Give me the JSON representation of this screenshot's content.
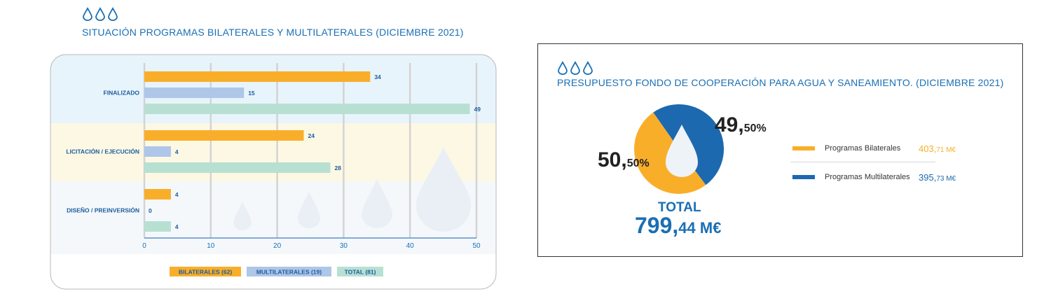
{
  "colors": {
    "accent": "#1a6fb4",
    "orange": "#f9ae2a",
    "lightblue": "#aec6e8",
    "teal": "#b8e0d2",
    "darkblue": "#1c69b0",
    "band_finalizado": "#e8f4fc",
    "band_licitacion": "#fdf8e4",
    "band_diseno": "#f5f8fb"
  },
  "left_section": {
    "title": "SITUACIÓN PROGRAMAS BILATERALES Y MULTILATERALES (DICIEMBRE 2021)",
    "icon": "three-water-drops-icon"
  },
  "right_section": {
    "title": "PRESUPUESTO FONDO DE COOPERACIÓN PARA AGUA Y SANEAMIENTO. (DICIEMBRE 2021)",
    "icon": "three-water-drops-icon"
  },
  "chart_data": [
    {
      "type": "bar",
      "orientation": "horizontal",
      "title": "SITUACIÓN PROGRAMAS BILATERALES Y MULTILATERALES (DICIEMBRE 2021)",
      "categories": [
        "FINALIZADO",
        "LICITACIÓN / EJECUCIÓN",
        "DISEÑO / PREINVERSIÓN"
      ],
      "series": [
        {
          "name": "BILATERALES (62)",
          "values": [
            34,
            24,
            4
          ],
          "color": "#f9ae2a"
        },
        {
          "name": "MULTILATERALES (19)",
          "values": [
            15,
            4,
            0
          ],
          "color": "#aec6e8"
        },
        {
          "name": "TOTAL (81)",
          "values": [
            49,
            28,
            4
          ],
          "color": "#b8e0d2"
        }
      ],
      "x_ticks": [
        "0",
        "10",
        "20",
        "30",
        "40",
        "50"
      ],
      "xlim": [
        0,
        50
      ],
      "grid": true,
      "legend_position": "bottom-center"
    },
    {
      "type": "pie",
      "title": "PRESUPUESTO FONDO DE COOPERACIÓN PARA AGUA Y SANEAMIENTO. (DICIEMBRE 2021)",
      "slices": [
        {
          "name": "Programas Bilaterales",
          "value": 403.71,
          "value_int": "403,",
          "value_dec": "71 M€",
          "percent": 50.5,
          "pct_int": "50,",
          "pct_dec": "50%",
          "color": "#f9ae2a"
        },
        {
          "name": "Programas Multilaterales",
          "value": 395.73,
          "value_int": "395,",
          "value_dec": "73 M€",
          "percent": 49.5,
          "pct_int": "49,",
          "pct_dec": "50%",
          "color": "#1c69b0"
        }
      ],
      "total_label": "TOTAL",
      "total_int": "799,",
      "total_dec": "44 M€",
      "legend_position": "right"
    }
  ]
}
